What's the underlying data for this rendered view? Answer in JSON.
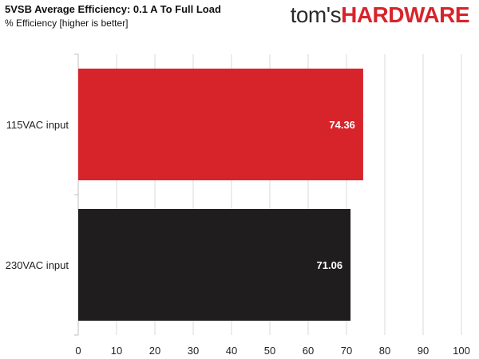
{
  "header": {
    "title": "5VSB Average Efficiency: 0.1 A To Full Load",
    "subtitle": "% Efficiency [higher is better]"
  },
  "logo": {
    "brand": "tom's",
    "accent": "HARDWARE"
  },
  "colors": {
    "accent": "#d7242b",
    "bar_dark": "#1f1d1e",
    "grid": "#d9d9d9",
    "axis": "#bfbfbf"
  },
  "chart_data": {
    "type": "bar",
    "orientation": "horizontal",
    "title": "5VSB Average Efficiency: 0.1 A To Full Load",
    "subtitle": "% Efficiency [higher is better]",
    "xlabel": "",
    "ylabel": "",
    "categories": [
      "115VAC input",
      "230VAC input"
    ],
    "values": [
      74.36,
      71.06
    ],
    "value_labels": [
      "74.36",
      "71.06"
    ],
    "bar_colors": [
      "#d7242b",
      "#1f1d1e"
    ],
    "xlim": [
      0,
      100
    ],
    "xticks": [
      0,
      10,
      20,
      30,
      40,
      50,
      60,
      70,
      80,
      90,
      100
    ],
    "grid": true
  }
}
